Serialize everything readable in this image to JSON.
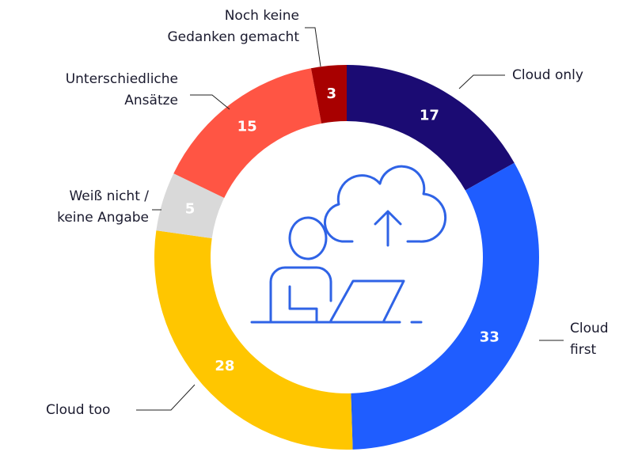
{
  "chart_data": {
    "type": "donut",
    "categories": [
      "Cloud only",
      "Cloud\nfirst",
      "Cloud too",
      "Weiß nicht /\nkeine Angabe",
      "Unterschiedliche\nAnsätze",
      "Noch keine\nGedanken gemacht"
    ],
    "values": [
      17,
      33,
      28,
      5,
      15,
      3
    ],
    "colors": [
      "#1b0b73",
      "#1f5dff",
      "#ffc600",
      "#d9d9d9",
      "#ff5544",
      "#a80000"
    ]
  }
}
